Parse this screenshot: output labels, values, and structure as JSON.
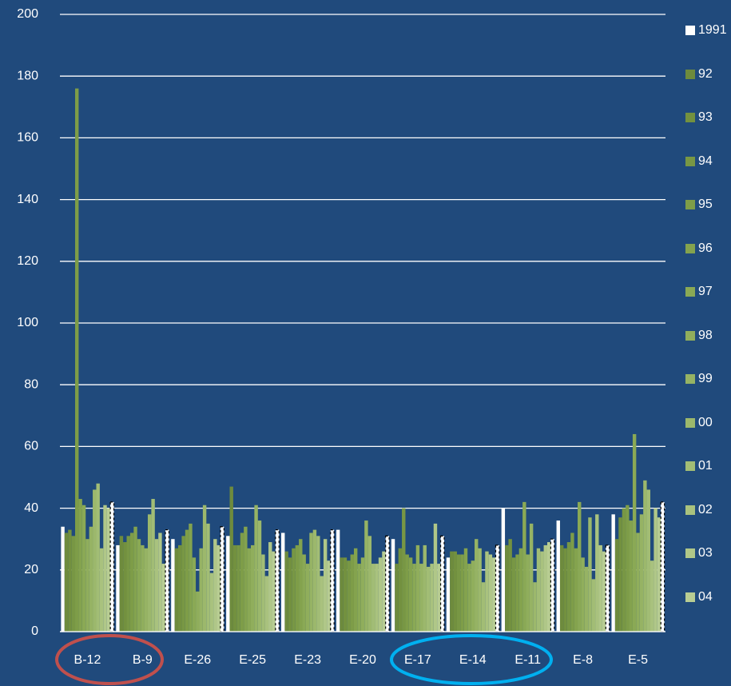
{
  "chart_data": {
    "type": "bar",
    "categories": [
      "B-12",
      "B-9",
      "E-26",
      "E-25",
      "E-23",
      "E-20",
      "E-17",
      "E-14",
      "E-11",
      "E-8",
      "E-5"
    ],
    "ylim": [
      0,
      200
    ],
    "yticks": [
      0,
      20,
      40,
      60,
      80,
      100,
      120,
      140,
      160,
      180,
      200
    ],
    "grid": true,
    "series": [
      {
        "name": "1991",
        "color": "#ffffff",
        "values": [
          34,
          28,
          30,
          31,
          32,
          33,
          30,
          24,
          40,
          36,
          38
        ]
      },
      {
        "name": "92",
        "color": "#6e8b3d",
        "values": [
          32,
          31,
          27,
          47,
          26,
          24,
          22,
          26,
          28,
          28,
          30
        ]
      },
      {
        "name": "93",
        "color": "#73913f",
        "values": [
          33,
          29,
          28,
          28,
          24,
          24,
          27,
          26,
          30,
          27,
          37
        ]
      },
      {
        "name": "94",
        "color": "#789744",
        "values": [
          31,
          31,
          31,
          28,
          27,
          23,
          40,
          25,
          24,
          29,
          40
        ]
      },
      {
        "name": "95",
        "color": "#7e9d48",
        "values": [
          176,
          32,
          33,
          32,
          28,
          25,
          25,
          25,
          25,
          32,
          41
        ]
      },
      {
        "name": "96",
        "color": "#84a34e",
        "values": [
          43,
          34,
          35,
          34,
          30,
          27,
          24,
          27,
          27,
          27,
          36
        ]
      },
      {
        "name": "97",
        "color": "#8aa955",
        "values": [
          41,
          30,
          24,
          27,
          25,
          22,
          22,
          22,
          42,
          42,
          64
        ]
      },
      {
        "name": "98",
        "color": "#90ae5c",
        "values": [
          30,
          28,
          13,
          28,
          22,
          24,
          28,
          23,
          25,
          24,
          32
        ]
      },
      {
        "name": "99",
        "color": "#96b364",
        "values": [
          34,
          27,
          27,
          41,
          32,
          36,
          22,
          30,
          35,
          21,
          38
        ]
      },
      {
        "name": "00",
        "color": "#9cb86c",
        "values": [
          46,
          38,
          41,
          36,
          33,
          31,
          28,
          27,
          16,
          37,
          49
        ]
      },
      {
        "name": "01",
        "color": "#a2bd75",
        "values": [
          48,
          43,
          35,
          25,
          31,
          22,
          21,
          16,
          27,
          17,
          46
        ]
      },
      {
        "name": "02",
        "color": "#a9c27e",
        "values": [
          27,
          30,
          19,
          18,
          18,
          22,
          22,
          26,
          26,
          38,
          23
        ]
      },
      {
        "name": "03",
        "color": "#b0c788",
        "values": [
          41,
          32,
          30,
          29,
          30,
          24,
          35,
          25,
          28,
          28,
          40
        ]
      },
      {
        "name": "04",
        "color": "#b8cd93",
        "values": [
          40,
          22,
          28,
          26,
          23,
          26,
          22,
          24,
          29,
          26,
          37
        ]
      },
      {
        "color": "#ffffff",
        "values": [
          42,
          33,
          34,
          33,
          33,
          31,
          31,
          28,
          30,
          28,
          42
        ]
      }
    ]
  }
}
